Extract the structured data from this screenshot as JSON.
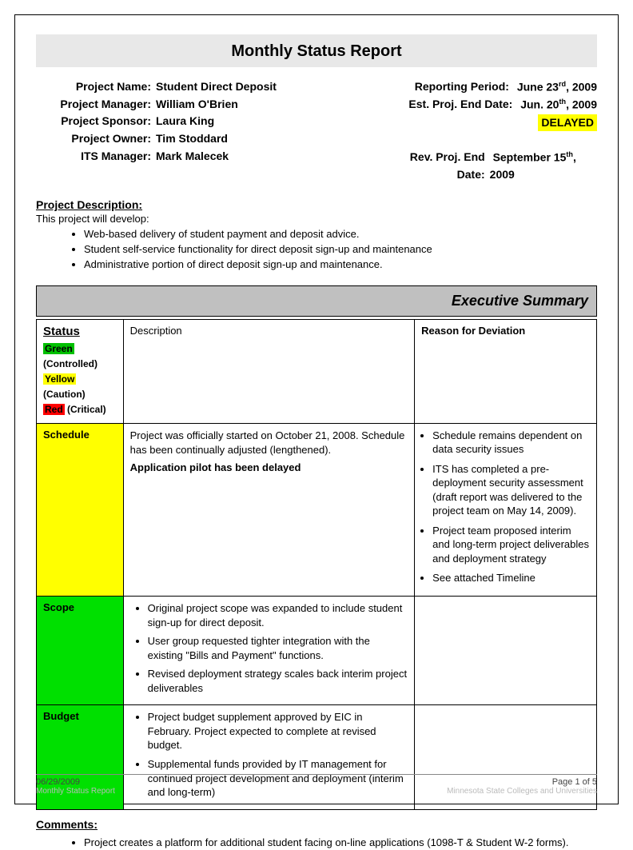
{
  "title": "Monthly Status Report",
  "header": {
    "project_name_label": "Project Name:",
    "project_name": "Student Direct Deposit",
    "project_manager_label": "Project Manager:",
    "project_manager": "William O'Brien",
    "project_sponsor_label": "Project Sponsor:",
    "project_sponsor": "Laura King",
    "project_owner_label": "Project Owner:",
    "project_owner": "Tim Stoddard",
    "its_manager_label": "ITS Manager:",
    "its_manager": "Mark Malecek",
    "reporting_period_label": "Reporting Period:",
    "reporting_period": "June 23",
    "reporting_period_sup": "rd",
    "reporting_period_year": ", 2009",
    "est_end_label": "Est. Proj. End Date:",
    "est_end": "Jun. 20",
    "est_end_sup": "th",
    "est_end_year": ", 2009",
    "delayed": "DELAYED",
    "rev_end_label": "Rev. Proj. End Date:",
    "rev_end": "September 15",
    "rev_end_sup": "th",
    "rev_end_year": ", 2009"
  },
  "description": {
    "label": "Project Description:",
    "intro": "This project will develop:",
    "items": [
      "Web-based delivery of student payment and deposit advice.",
      "Student self-service functionality for direct deposit sign-up and maintenance",
      "Administrative portion of direct deposit sign-up and maintenance."
    ]
  },
  "exec_summary_title": "Executive Summary",
  "table": {
    "status_header": "Status",
    "desc_header": "Description",
    "reason_header": "Reason for Deviation",
    "legend": {
      "green": "Green",
      "green_note": " (Controlled)",
      "yellow": "Yellow",
      "yellow_note": " (Caution)",
      "red": "Red",
      "red_note": " (Critical)"
    },
    "colors": {
      "green": "#00e000",
      "yellow": "#ffff00",
      "red": "#ff0000",
      "band": "#c0c0c0",
      "title_band": "#e8e8e8"
    },
    "rows": [
      {
        "label": "Schedule",
        "status_color": "yellow",
        "desc_lines": [
          "Project was officially started on October 21, 2008. Schedule has been continually adjusted (lengthened).",
          "Application pilot has been delayed"
        ],
        "desc_bold_last": true,
        "reasons": [
          "Schedule remains dependent on data security issues",
          "ITS has completed a pre-deployment security assessment (draft report was delivered to the project team on May 14, 2009).",
          "Project team proposed interim and long-term project deliverables and deployment strategy",
          "See attached Timeline"
        ]
      },
      {
        "label": "Scope",
        "status_color": "green",
        "desc_bullets": [
          "Original project scope was expanded to include student sign-up for direct deposit.",
          "User group requested tighter integration with the existing \"Bills and Payment\" functions.",
          "Revised deployment strategy scales back interim project deliverables"
        ],
        "reasons": []
      },
      {
        "label": "Budget",
        "status_color": "green",
        "desc_bullets": [
          "Project budget supplement approved by EIC in February.  Project expected to complete at revised budget.",
          "Supplemental funds provided by IT management for continued project development and deployment (interim and long-term)"
        ],
        "reasons": []
      }
    ]
  },
  "comments": {
    "label": "Comments:",
    "items": [
      "Project creates a platform for additional student facing on-line applications (1098-T & Student W-2 forms)."
    ]
  },
  "footer": {
    "date": "06/29/2009",
    "subtitle": "Monthly Status Report",
    "page": "Page 1 of 5",
    "org": "Minnesota State Colleges and Universities"
  }
}
